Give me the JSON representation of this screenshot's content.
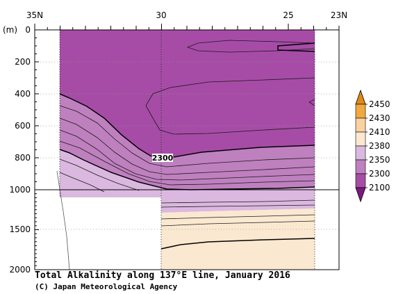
{
  "caption": {
    "title": "Total Alkalinity along 137°E line, January 2016",
    "credit": "(C) Japan Meteorological Agency"
  },
  "chart_data": {
    "type": "contour-section",
    "title": "Total Alkalinity along 137°E line, January 2016",
    "x_axis": {
      "range": [
        35,
        23
      ],
      "ticks": [
        35,
        30,
        25,
        23
      ],
      "tick_labels": [
        "35N",
        "30",
        "25",
        "23N"
      ]
    },
    "y_axis": {
      "unit_label": "(m)",
      "range": [
        0,
        2000
      ],
      "break_at": 1000,
      "ticks": [
        0,
        200,
        400,
        600,
        800,
        1000,
        1500,
        2000
      ],
      "tick_labels": [
        "0",
        "200",
        "400",
        "600",
        "800",
        "1000",
        "1500",
        "2000"
      ]
    },
    "colorbar": {
      "levels": [
        2100,
        2300,
        2350,
        2380,
        2410,
        2430,
        2450
      ],
      "labels": [
        "2100",
        "2300",
        "2350",
        "2380",
        "2410",
        "2430",
        "2450"
      ],
      "colors": [
        "#a64ca6",
        "#bf80bf",
        "#dbb8e0",
        "#fbe8d0",
        "#f9d2a0",
        "#f0a840",
        "#e08818"
      ],
      "extend_low_color": "#7a1a80",
      "extend_high_color": "#e08818"
    },
    "contour_label": "2300",
    "data_extent": {
      "lat_north": 33.5,
      "lat_south": 24.3,
      "deep_lat_north": 30,
      "shallow_bottom_m": 1050
    },
    "zones": [
      {
        "range": "< 2300",
        "color": "#a64ca6"
      },
      {
        "range": "2300-2350",
        "color": "#bf80bf"
      },
      {
        "range": "2350-2380",
        "color": "#dbb8e0"
      },
      {
        "range": "2380-2410",
        "color": "#fbe8d0"
      }
    ]
  }
}
